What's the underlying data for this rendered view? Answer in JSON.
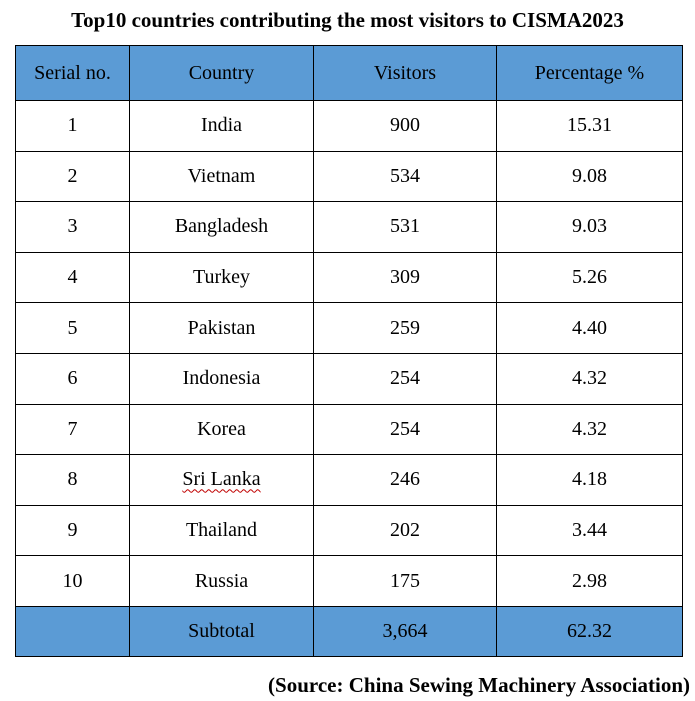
{
  "title": "Top10 countries contributing the most visitors to CISMA2023",
  "source": "(Source: China Sewing Machinery Association)",
  "colors": {
    "header_fill": "#5b9bd5",
    "subtotal_fill": "#5b9bd5",
    "border": "#000000",
    "spellcheck_underline": "#c00000"
  },
  "chart_data": {
    "type": "table",
    "columns": [
      "Serial no.",
      "Country",
      "Visitors",
      "Percentage %"
    ],
    "rows": [
      [
        "1",
        "India",
        "900",
        "15.31"
      ],
      [
        "2",
        "Vietnam",
        "534",
        "9.08"
      ],
      [
        "3",
        "Bangladesh",
        "531",
        "9.03"
      ],
      [
        "4",
        "Turkey",
        "309",
        "5.26"
      ],
      [
        "5",
        "Pakistan",
        "259",
        "4.40"
      ],
      [
        "6",
        "Indonesia",
        "254",
        "4.32"
      ],
      [
        "7",
        "Korea",
        "254",
        "4.32"
      ],
      [
        "8",
        "Sri Lanka",
        "246",
        "4.18"
      ],
      [
        "9",
        "Thailand",
        "202",
        "3.44"
      ],
      [
        "10",
        "Russia",
        "175",
        "2.98"
      ]
    ],
    "subtotal": [
      "",
      "Subtotal",
      "3,664",
      "62.32"
    ]
  }
}
